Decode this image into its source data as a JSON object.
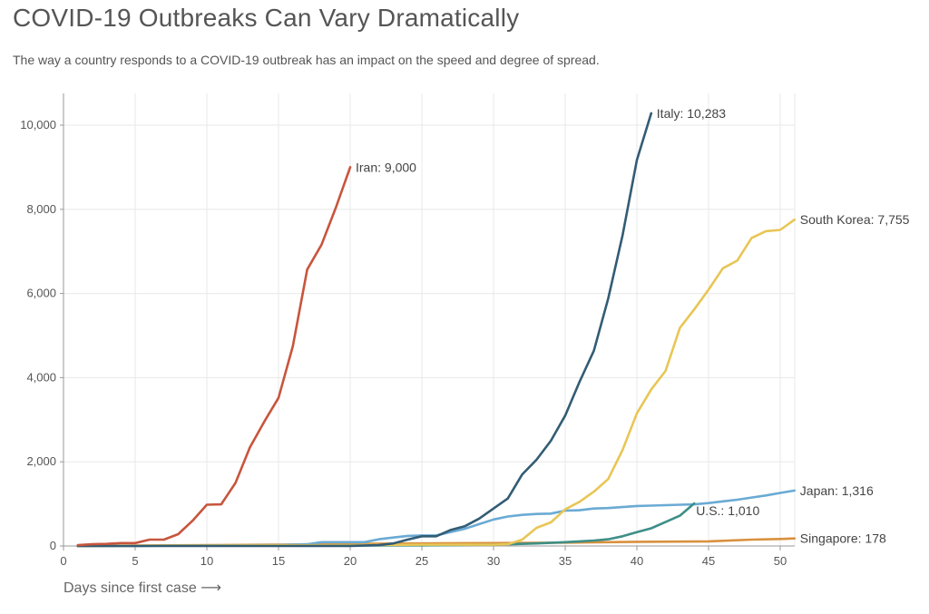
{
  "title": "COVID-19 Outbreaks Can Vary Dramatically",
  "subtitle": "The way a country responds to a COVID-19 outbreak has an impact on the speed and degree of spread.",
  "chart_data": {
    "type": "line",
    "title": "COVID-19 Outbreaks Can Vary Dramatically",
    "xlabel": "Days since first case ⟶",
    "ylabel": "",
    "xlim": [
      0,
      51
    ],
    "ylim": [
      0,
      10500
    ],
    "x_ticks": [
      0,
      5,
      10,
      15,
      20,
      25,
      30,
      35,
      40,
      45,
      50
    ],
    "y_ticks": [
      0,
      2000,
      4000,
      6000,
      8000,
      10000
    ],
    "y_tick_labels": [
      "0",
      "2,000",
      "4,000",
      "6,000",
      "8,000",
      "10,000"
    ],
    "grid": true,
    "legend": "labels at line ends",
    "series": [
      {
        "name": "Iran",
        "label": "Iran: 9,000",
        "color": "#c8553d",
        "x": [
          1,
          2,
          3,
          4,
          5,
          6,
          7,
          8,
          9,
          10,
          11,
          12,
          13,
          14,
          15,
          16,
          17,
          18,
          19,
          20
        ],
        "y": [
          20,
          40,
          50,
          70,
          70,
          150,
          150,
          280,
          600,
          980,
          990,
          1500,
          2340,
          2950,
          3520,
          4750,
          6570,
          7160,
          8040,
          9000
        ]
      },
      {
        "name": "Italy",
        "label": "Italy: 10,283",
        "color": "#335c74",
        "x": [
          1,
          5,
          10,
          15,
          20,
          22,
          23,
          24,
          25,
          26,
          27,
          28,
          29,
          30,
          31,
          32,
          33,
          34,
          35,
          36,
          37,
          38,
          39,
          40,
          41
        ],
        "y": [
          0,
          0,
          0,
          0,
          3,
          20,
          60,
          150,
          230,
          230,
          380,
          470,
          650,
          890,
          1130,
          1700,
          2050,
          2500,
          3100,
          3900,
          4640,
          5880,
          7380,
          9170,
          10283
        ]
      },
      {
        "name": "South Korea",
        "label": "South Korea: 7,755",
        "color": "#e8c655",
        "x": [
          1,
          10,
          20,
          25,
          30,
          31,
          32,
          33,
          34,
          35,
          36,
          37,
          38,
          39,
          40,
          41,
          42,
          43,
          44,
          45,
          46,
          47,
          48,
          49,
          50,
          51
        ],
        "y": [
          0,
          10,
          20,
          30,
          30,
          40,
          150,
          430,
          560,
          870,
          1050,
          1290,
          1590,
          2280,
          3150,
          3720,
          4160,
          5180,
          5620,
          6090,
          6600,
          6780,
          7320,
          7480,
          7510,
          7755
        ]
      },
      {
        "name": "Japan",
        "label": "Japan: 1,316",
        "color": "#6aaad4",
        "x": [
          1,
          5,
          10,
          15,
          17,
          18,
          19,
          20,
          21,
          22,
          23,
          24,
          25,
          26,
          27,
          28,
          29,
          30,
          31,
          32,
          33,
          34,
          35,
          36,
          37,
          38,
          39,
          40,
          41,
          42,
          43,
          44,
          45,
          46,
          47,
          48,
          49,
          50,
          51
        ],
        "y": [
          0,
          5,
          10,
          20,
          40,
          90,
          90,
          90,
          90,
          160,
          200,
          240,
          250,
          250,
          330,
          410,
          520,
          630,
          700,
          740,
          760,
          770,
          840,
          850,
          890,
          900,
          925,
          950,
          960,
          970,
          980,
          990,
          1020,
          1060,
          1100,
          1150,
          1200,
          1260,
          1316
        ]
      },
      {
        "name": "U.S.",
        "label": "U.S.: 1,010",
        "color": "#3d8f87",
        "x": [
          1,
          5,
          10,
          15,
          20,
          25,
          30,
          33,
          35,
          36,
          37,
          38,
          39,
          40,
          41,
          42,
          43,
          44
        ],
        "y": [
          0,
          5,
          10,
          12,
          13,
          15,
          30,
          60,
          90,
          110,
          130,
          160,
          230,
          330,
          420,
          570,
          720,
          1010
        ]
      },
      {
        "name": "Singapore",
        "label": "Singapore: 178",
        "color": "#d9903d",
        "x": [
          1,
          5,
          10,
          15,
          20,
          25,
          30,
          35,
          40,
          45,
          48,
          50,
          51
        ],
        "y": [
          0,
          10,
          20,
          30,
          50,
          60,
          70,
          80,
          100,
          110,
          150,
          165,
          178
        ]
      }
    ]
  }
}
